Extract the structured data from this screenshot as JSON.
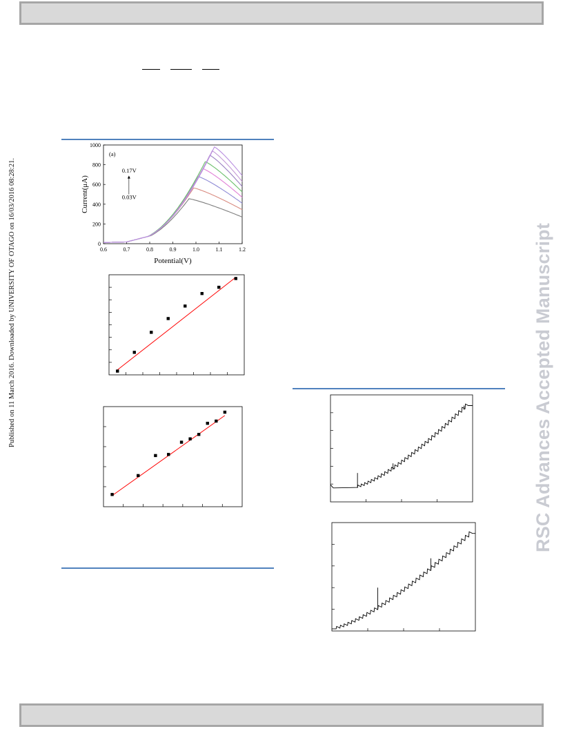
{
  "sidebar_left": "Published on 11 March 2016. Downloaded by UNIVERSITY OF OTAGO on 16/03/2016 08:28:21.",
  "watermark": "RSC Advances Accepted Manuscript",
  "chart_data": [
    {
      "type": "line",
      "panel_label": "(a)",
      "xlabel": "Potential(V)",
      "ylabel": "Current(μA)",
      "xlim": [
        0.6,
        1.2
      ],
      "ylim": [
        0,
        1000
      ],
      "xticks": [
        "0.6",
        "0.7",
        "0.8",
        "0.9",
        "1.0",
        "1.1",
        "1.2"
      ],
      "yticks": [
        "0",
        "200",
        "400",
        "600",
        "800",
        "1000"
      ],
      "annotations": [
        "0.17V",
        "0.03V"
      ],
      "series": [
        {
          "color": "#7f7f7f",
          "peak_x": 0.97,
          "peak_y": 455,
          "end_y": 270
        },
        {
          "color": "#d98b80",
          "peak_x": 0.99,
          "peak_y": 565,
          "end_y": 345
        },
        {
          "color": "#8f8bd6",
          "peak_x": 1.01,
          "peak_y": 680,
          "end_y": 410
        },
        {
          "color": "#e07fd6",
          "peak_x": 1.03,
          "peak_y": 760,
          "end_y": 470
        },
        {
          "color": "#6bbf6b",
          "peak_x": 1.04,
          "peak_y": 830,
          "end_y": 525
        },
        {
          "color": "#9a7fc2",
          "peak_x": 1.06,
          "peak_y": 895,
          "end_y": 580
        },
        {
          "color": "#c49ad6",
          "peak_x": 1.07,
          "peak_y": 940,
          "end_y": 630
        },
        {
          "color": "#b98ee0",
          "peak_x": 1.08,
          "peak_y": 980,
          "end_y": 690
        }
      ]
    },
    {
      "type": "scatter",
      "x": [
        0.03,
        0.05,
        0.07,
        0.09,
        0.11,
        0.13,
        0.15,
        0.17
      ],
      "y": [
        0.3,
        1.8,
        3.4,
        4.5,
        5.5,
        6.5,
        7.0,
        7.7
      ],
      "xlim": [
        0.02,
        0.18
      ],
      "ylim": [
        0,
        8
      ],
      "fit": {
        "x": [
          0.03,
          0.17
        ],
        "y": [
          0.4,
          7.8
        ],
        "color": "#ff0000"
      }
    },
    {
      "type": "scatter",
      "x": [
        0.1,
        0.4,
        0.6,
        0.75,
        0.9,
        1.0,
        1.1,
        1.2,
        1.3,
        1.4
      ],
      "y": [
        0.55,
        1.4,
        2.3,
        2.35,
        2.9,
        3.05,
        3.25,
        3.75,
        3.85,
        4.25
      ],
      "xlim": [
        0,
        1.6
      ],
      "ylim": [
        0,
        4.5
      ],
      "fit": {
        "x": [
          0.1,
          1.4
        ],
        "y": [
          0.5,
          4.1
        ],
        "color": "#ff0000"
      }
    },
    {
      "type": "line",
      "subtype": "amperometric staircase",
      "xlim": [
        0,
        100
      ],
      "ylim": [
        0,
        10
      ],
      "baseline": 1.3,
      "step_start": 19,
      "steps": 33,
      "step_x_end": 97,
      "y_end": 9.0,
      "spikes": [
        [
          19,
          2.7
        ],
        [
          44,
          3.6
        ],
        [
          69,
          5.6
        ],
        [
          94,
          9.0
        ]
      ]
    },
    {
      "type": "line",
      "subtype": "amperometric staircase",
      "xlim": [
        0,
        100
      ],
      "ylim": [
        0,
        10
      ],
      "step_start": 3,
      "steps": 36,
      "step_x_end": 98,
      "y_start": 0.2,
      "y_end": 9.0,
      "spikes": [
        [
          32,
          4.0
        ],
        [
          69,
          6.7
        ]
      ]
    }
  ]
}
